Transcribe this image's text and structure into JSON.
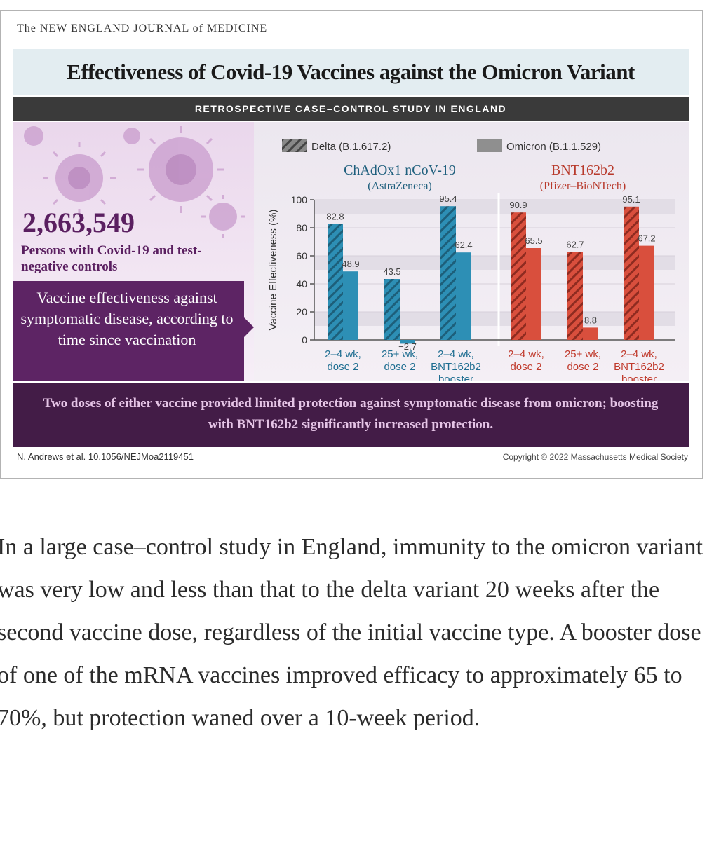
{
  "journal": "The NEW ENGLAND JOURNAL of MEDICINE",
  "title": "Effectiveness of Covid-19 Vaccines against the Omicron Variant",
  "subtitle": "RETROSPECTIVE CASE–CONTROL STUDY IN ENGLAND",
  "participants": {
    "count": "2,663,549",
    "label": "Persons with Covid-19 and test-negative controls"
  },
  "effect_label": "Vaccine effectiveness against symptomatic disease, according to time since vaccination",
  "conclusion": "Two doses of either vaccine provided limited protection against symptomatic disease from omicron; boosting with BNT162b2 significantly increased protection.",
  "citation": "N. Andrews et al.    10.1056/NEJMoa2119451",
  "copyright": "Copyright © 2022 Massachusetts Medical Society",
  "body_text": "In a large case–control study in England, immunity to the omicron variant was very low and less than that to the delta variant 20 weeks after the second vaccine dose, regardless of the initial vaccine type. A booster dose of one of the mRNA vaccines improved efficacy to approximately 65 to 70%, but protection waned over a 10-week period.",
  "colors": {
    "astrazeneca": "#2d8fb5",
    "pfizer": "#d94f3d",
    "title_purple": "#5a1f60",
    "dark_band": "#431c47"
  },
  "chart_data": {
    "type": "bar",
    "ylabel": "Vaccine Effectiveness (%)",
    "ylim": [
      0,
      100
    ],
    "yticks": [
      0,
      20,
      40,
      60,
      80,
      100
    ],
    "legend": {
      "placement": "top",
      "entries": [
        {
          "label": "Delta (B.1.617.2)",
          "pattern": "hatched"
        },
        {
          "label": "Omicron (B.1.1.529)",
          "pattern": "solid"
        }
      ]
    },
    "panels": [
      {
        "vaccine": "ChAdOx1 nCoV-19",
        "manufacturer": "(AstraZeneca)",
        "categories": [
          [
            "2–4 wk,",
            "dose 2"
          ],
          [
            "25+ wk,",
            "dose 2"
          ],
          [
            "2–4 wk,",
            "BNT162b2",
            "booster"
          ]
        ],
        "series": [
          {
            "name": "Delta (B.1.617.2)",
            "values": [
              82.8,
              43.5,
              95.4
            ],
            "labels": [
              "82.8",
              "43.5",
              "95.4"
            ]
          },
          {
            "name": "Omicron (B.1.1.529)",
            "values": [
              48.9,
              -2.7,
              62.4
            ],
            "labels": [
              "48.9",
              "−2.7",
              "62.4"
            ]
          }
        ]
      },
      {
        "vaccine": "BNT162b2",
        "manufacturer": "(Pfizer–BioNTech)",
        "categories": [
          [
            "2–4 wk,",
            "dose 2"
          ],
          [
            "25+ wk,",
            "dose 2"
          ],
          [
            "2–4 wk,",
            "BNT162b2",
            "booster"
          ]
        ],
        "series": [
          {
            "name": "Delta (B.1.617.2)",
            "values": [
              90.9,
              62.7,
              95.1
            ],
            "labels": [
              "90.9",
              "62.7",
              "95.1"
            ]
          },
          {
            "name": "Omicron (B.1.1.529)",
            "values": [
              65.5,
              8.8,
              67.2
            ],
            "labels": [
              "65.5",
              "8.8",
              "67.2"
            ]
          }
        ]
      }
    ]
  }
}
